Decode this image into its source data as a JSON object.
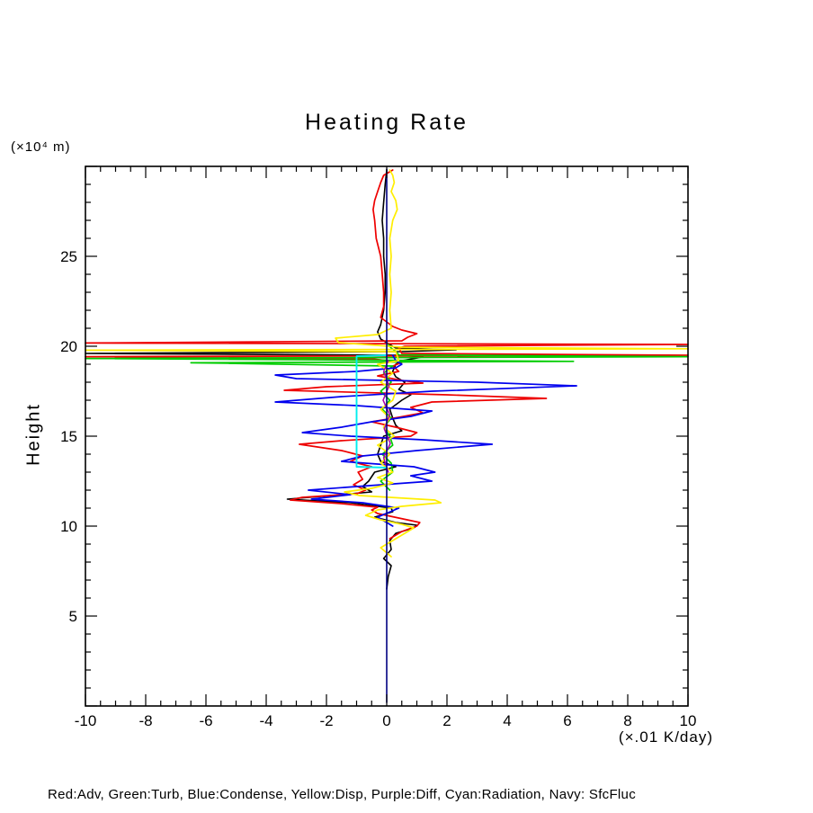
{
  "chart_data": {
    "type": "line",
    "title": "Heating Rate",
    "ylabel": "Height",
    "y_units": "(×10⁴ m)",
    "x_units": "(×.01 K/day)",
    "legend": "Red:Adv, Green:Turb, Blue:Condense, Yellow:Disp, Purple:Diff, Cyan:Radiation, Navy: SfcFluc",
    "xlim": [
      -10,
      10
    ],
    "ylim": [
      0,
      30
    ],
    "x_ticks": [
      -10,
      -8,
      -6,
      -4,
      -2,
      0,
      2,
      4,
      6,
      8,
      10
    ],
    "y_ticks": [
      5,
      10,
      15,
      20,
      25
    ],
    "x_major": 2,
    "x_minor": 0.5,
    "y_major": 5,
    "y_minor": 1,
    "series": [
      {
        "name": "black",
        "color": "#000000",
        "width": 1.6,
        "points": [
          [
            0,
            6.5
          ],
          [
            0.05,
            7.2
          ],
          [
            0.15,
            7.8
          ],
          [
            -0.1,
            8.2
          ],
          [
            0.15,
            8.7
          ],
          [
            0.1,
            9.2
          ],
          [
            0.3,
            9.6
          ],
          [
            0.9,
            9.9
          ],
          [
            1.0,
            10.05
          ],
          [
            0.3,
            10.2
          ],
          [
            -0.4,
            10.5
          ],
          [
            0.2,
            10.8
          ],
          [
            0.15,
            11.0
          ],
          [
            -1.2,
            11.3
          ],
          [
            -3.3,
            11.5
          ],
          [
            -2.2,
            11.65
          ],
          [
            -0.5,
            11.9
          ],
          [
            -0.8,
            12.2
          ],
          [
            -0.6,
            12.5
          ],
          [
            -0.4,
            13.0
          ],
          [
            0.3,
            13.3
          ],
          [
            -0.2,
            13.6
          ],
          [
            -0.3,
            14.0
          ],
          [
            -0.2,
            14.5
          ],
          [
            -0.1,
            15.0
          ],
          [
            0.5,
            15.3
          ],
          [
            0.3,
            15.6
          ],
          [
            0.2,
            16.0
          ],
          [
            0.1,
            16.5
          ],
          [
            0.5,
            17.0
          ],
          [
            0.8,
            17.3
          ],
          [
            0.4,
            17.6
          ],
          [
            0.6,
            18.0
          ],
          [
            0.3,
            18.3
          ],
          [
            0.2,
            18.6
          ],
          [
            0.3,
            19.0
          ],
          [
            0.5,
            19.2
          ],
          [
            1.2,
            19.4
          ],
          [
            0.4,
            19.5
          ],
          [
            -10,
            19.6
          ],
          [
            0.5,
            19.7
          ],
          [
            2.3,
            19.8
          ],
          [
            0.3,
            19.9
          ],
          [
            0.1,
            20.1
          ],
          [
            -0.2,
            20.4
          ],
          [
            -0.3,
            20.8
          ],
          [
            -0.2,
            21.2
          ],
          [
            -0.1,
            22
          ],
          [
            -0.05,
            23
          ],
          [
            -0.05,
            24
          ],
          [
            -0.1,
            25
          ],
          [
            -0.1,
            26
          ],
          [
            -0.15,
            27
          ],
          [
            -0.1,
            28
          ],
          [
            -0.05,
            29
          ],
          [
            0,
            29.8
          ]
        ]
      },
      {
        "name": "Adv",
        "color": "#ee0000",
        "width": 1.7,
        "points": [
          [
            0.1,
            9.3
          ],
          [
            0.5,
            9.7
          ],
          [
            1.0,
            10.0
          ],
          [
            1.1,
            10.2
          ],
          [
            0.4,
            10.45
          ],
          [
            -0.3,
            10.7
          ],
          [
            -0.5,
            10.9
          ],
          [
            -0.3,
            11.05
          ],
          [
            -1.5,
            11.25
          ],
          [
            -3.2,
            11.45
          ],
          [
            -2.8,
            11.6
          ],
          [
            -1.0,
            11.8
          ],
          [
            -0.7,
            12.0
          ],
          [
            -1.1,
            12.3
          ],
          [
            -0.8,
            12.6
          ],
          [
            -0.95,
            13.0
          ],
          [
            -0.5,
            13.3
          ],
          [
            -1.2,
            13.6
          ],
          [
            -0.8,
            13.9
          ],
          [
            -1.5,
            14.2
          ],
          [
            -2.9,
            14.55
          ],
          [
            -1.5,
            14.75
          ],
          [
            0.8,
            15.0
          ],
          [
            1.0,
            15.2
          ],
          [
            0.3,
            15.5
          ],
          [
            -0.5,
            15.8
          ],
          [
            0.4,
            16.05
          ],
          [
            1.2,
            16.3
          ],
          [
            0.8,
            16.6
          ],
          [
            1.5,
            16.9
          ],
          [
            5.3,
            17.1
          ],
          [
            2.0,
            17.3
          ],
          [
            -3.4,
            17.55
          ],
          [
            -2.0,
            17.75
          ],
          [
            1.2,
            17.95
          ],
          [
            0.5,
            18.1
          ],
          [
            -0.3,
            18.35
          ],
          [
            0.4,
            18.6
          ],
          [
            0.2,
            18.9
          ],
          [
            0.5,
            19.1
          ],
          [
            -0.5,
            19.3
          ],
          [
            -10,
            19.42
          ],
          [
            10,
            19.5
          ],
          [
            0.5,
            19.6
          ],
          [
            0.4,
            19.9
          ],
          [
            0.6,
            20.0
          ],
          [
            10,
            20.1
          ],
          [
            -10,
            20.18
          ],
          [
            0.5,
            20.3
          ],
          [
            0.7,
            20.5
          ],
          [
            1.0,
            20.7
          ],
          [
            0.5,
            20.9
          ],
          [
            0.2,
            21.1
          ],
          [
            -0.2,
            21.6
          ],
          [
            -0.1,
            22.2
          ],
          [
            -0.1,
            23
          ],
          [
            -0.15,
            24
          ],
          [
            -0.2,
            25
          ],
          [
            -0.35,
            26
          ],
          [
            -0.4,
            27
          ],
          [
            -0.45,
            27.6
          ],
          [
            -0.4,
            28.1
          ],
          [
            -0.3,
            28.6
          ],
          [
            -0.2,
            29.1
          ],
          [
            -0.1,
            29.5
          ],
          [
            0.2,
            29.8
          ]
        ]
      },
      {
        "name": "Turb",
        "color": "#00cc00",
        "width": 1.7,
        "points": [
          [
            0.1,
            12.0
          ],
          [
            -0.2,
            12.5
          ],
          [
            0.2,
            13.0
          ],
          [
            0.15,
            13.5
          ],
          [
            -0.15,
            14.0
          ],
          [
            0.2,
            14.5
          ],
          [
            0.1,
            15.0
          ],
          [
            -0.1,
            15.5
          ],
          [
            0.15,
            16.0
          ],
          [
            -0.15,
            16.5
          ],
          [
            0.1,
            17.0
          ],
          [
            -0.2,
            17.5
          ],
          [
            0.15,
            18.0
          ],
          [
            -0.1,
            18.5
          ],
          [
            0.2,
            18.9
          ],
          [
            -6.5,
            19.08
          ],
          [
            6.2,
            19.16
          ],
          [
            0.3,
            19.22
          ],
          [
            -10,
            19.32
          ],
          [
            10,
            19.42
          ],
          [
            0.4,
            19.52
          ],
          [
            0.3,
            19.7
          ],
          [
            0.15,
            19.9
          ],
          [
            0.05,
            20.1
          ]
        ]
      },
      {
        "name": "Condense",
        "color": "#0000ee",
        "width": 1.7,
        "points": [
          [
            0.2,
            10.0
          ],
          [
            -0.3,
            10.5
          ],
          [
            0.4,
            11.0
          ],
          [
            -0.8,
            11.3
          ],
          [
            -2.5,
            11.5
          ],
          [
            -1.2,
            11.75
          ],
          [
            -2.6,
            12.0
          ],
          [
            -1.0,
            12.2
          ],
          [
            1.5,
            12.5
          ],
          [
            0.8,
            12.8
          ],
          [
            1.6,
            13.0
          ],
          [
            0.9,
            13.3
          ],
          [
            -1.5,
            13.6
          ],
          [
            -0.8,
            13.9
          ],
          [
            1.0,
            14.2
          ],
          [
            3.5,
            14.55
          ],
          [
            1.2,
            14.8
          ],
          [
            -1.2,
            15.0
          ],
          [
            -2.8,
            15.2
          ],
          [
            -1.5,
            15.5
          ],
          [
            -0.5,
            15.8
          ],
          [
            0.8,
            16.1
          ],
          [
            1.5,
            16.4
          ],
          [
            -1.0,
            16.7
          ],
          [
            -3.7,
            16.9
          ],
          [
            -1.5,
            17.2
          ],
          [
            1.5,
            17.5
          ],
          [
            6.3,
            17.8
          ],
          [
            3.0,
            18.0
          ],
          [
            -3.0,
            18.2
          ],
          [
            -3.7,
            18.4
          ],
          [
            -1.0,
            18.6
          ],
          [
            0.3,
            18.8
          ],
          [
            0.5,
            19.0
          ],
          [
            0.3,
            19.2
          ],
          [
            0.2,
            19.5
          ]
        ]
      },
      {
        "name": "Disp",
        "color": "#ffee00",
        "width": 1.7,
        "points": [
          [
            0.15,
            8.3
          ],
          [
            -0.2,
            8.8
          ],
          [
            0.3,
            9.3
          ],
          [
            0.6,
            9.6
          ],
          [
            0.9,
            9.9
          ],
          [
            0.5,
            10.1
          ],
          [
            -0.2,
            10.35
          ],
          [
            -0.7,
            10.6
          ],
          [
            -0.3,
            10.9
          ],
          [
            0.5,
            11.1
          ],
          [
            1.8,
            11.3
          ],
          [
            1.6,
            11.45
          ],
          [
            -0.9,
            11.7
          ],
          [
            -1.4,
            11.9
          ],
          [
            -0.5,
            12.1
          ],
          [
            0.2,
            12.4
          ],
          [
            -0.3,
            12.7
          ],
          [
            0.2,
            13.0
          ],
          [
            -0.2,
            13.5
          ],
          [
            0.1,
            14.0
          ],
          [
            -0.3,
            14.5
          ],
          [
            0.25,
            15.0
          ],
          [
            -0.1,
            15.5
          ],
          [
            0.1,
            16.0
          ],
          [
            -0.2,
            16.5
          ],
          [
            0.2,
            17.0
          ],
          [
            0.3,
            17.5
          ],
          [
            -0.2,
            18.0
          ],
          [
            0.2,
            18.5
          ],
          [
            -0.3,
            19.0
          ],
          [
            0.4,
            19.2
          ],
          [
            0.3,
            19.7
          ],
          [
            -10,
            19.78
          ],
          [
            10,
            19.86
          ],
          [
            0.5,
            19.95
          ],
          [
            -1.6,
            20.2
          ],
          [
            -1.7,
            20.45
          ],
          [
            -0.3,
            20.65
          ],
          [
            0.15,
            21.0
          ],
          [
            0.1,
            22.0
          ],
          [
            0.15,
            23.0
          ],
          [
            0.1,
            24.0
          ],
          [
            0.15,
            25.0
          ],
          [
            0.1,
            26.0
          ],
          [
            0.2,
            27.0
          ],
          [
            0.35,
            27.6
          ],
          [
            0.3,
            28.1
          ],
          [
            0.15,
            28.6
          ],
          [
            0.25,
            29.1
          ],
          [
            0.2,
            29.5
          ],
          [
            0.1,
            29.8
          ]
        ]
      },
      {
        "name": "Diff",
        "color": "#aa00aa",
        "width": 1.5,
        "points": [
          [
            0.05,
            13.0
          ],
          [
            -0.1,
            13.8
          ],
          [
            0.12,
            14.6
          ],
          [
            -0.08,
            15.4
          ],
          [
            0.1,
            16.2
          ],
          [
            -0.12,
            17.0
          ],
          [
            0.08,
            17.8
          ],
          [
            -0.1,
            18.6
          ],
          [
            0.05,
            19.2
          ]
        ]
      },
      {
        "name": "Radiation",
        "color": "#00eeee",
        "width": 1.9,
        "points": [
          [
            0,
            13.25
          ],
          [
            -1.0,
            13.3
          ],
          [
            -1.0,
            19.45
          ],
          [
            0,
            19.5
          ]
        ]
      },
      {
        "name": "SfcFluc",
        "color": "#000080",
        "width": 1.6,
        "points": [
          [
            0,
            0.2
          ],
          [
            0,
            29.85
          ]
        ]
      }
    ]
  }
}
